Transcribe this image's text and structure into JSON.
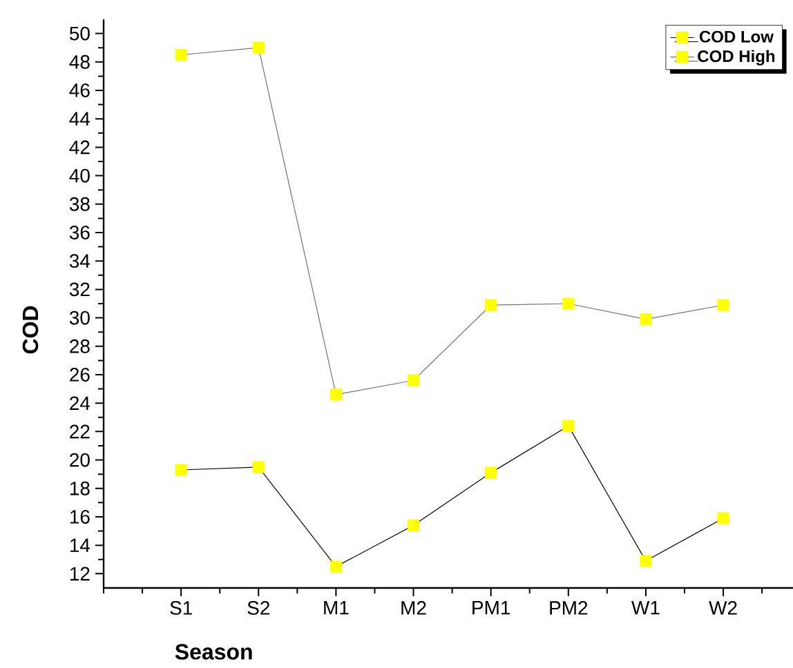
{
  "chart_data": {
    "type": "line",
    "xlabel": "Season",
    "ylabel": "COD",
    "categories": [
      "S1",
      "S2",
      "M1",
      "M2",
      "PM1",
      "PM2",
      "W1",
      "W2"
    ],
    "series": [
      {
        "name": "COD Low",
        "color": "#ffff00",
        "values": [
          19.3,
          19.5,
          12.5,
          15.4,
          19.1,
          22.4,
          12.9,
          15.9
        ]
      },
      {
        "name": "COD High",
        "color": "#ffff00",
        "values": [
          48.5,
          49.0,
          24.6,
          25.6,
          30.9,
          31.0,
          29.9,
          30.9
        ]
      }
    ],
    "ylim": [
      11,
      51
    ],
    "yticks": [
      12,
      14,
      16,
      18,
      20,
      22,
      24,
      26,
      28,
      30,
      32,
      34,
      36,
      38,
      40,
      42,
      44,
      46,
      48,
      50
    ],
    "grid": false,
    "legend": "top right",
    "marker": "square",
    "line_style": "solid"
  }
}
